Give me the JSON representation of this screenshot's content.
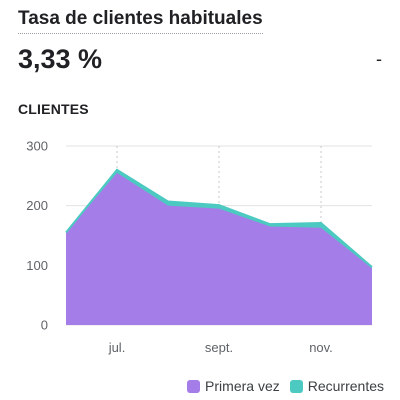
{
  "card": {
    "title": "Tasa de clientes habituales",
    "value": "3,33 %",
    "delta": "-"
  },
  "chart_data": {
    "type": "area",
    "title": "CLIENTES",
    "stacked": true,
    "x_tick_labels": [
      "jul.",
      "sept.",
      "nov."
    ],
    "y_ticks": [
      0,
      100,
      200,
      300
    ],
    "ylim": [
      0,
      300
    ],
    "grid": true,
    "legend_position": "bottom-right",
    "series": [
      {
        "name": "Primera vez",
        "color": "#a57de8",
        "values": [
          155,
          255,
          200,
          195,
          165,
          163,
          95
        ]
      },
      {
        "name": "Recurrentes",
        "color": "#4cc9c0",
        "values": [
          0,
          5,
          7,
          6,
          4,
          8,
          2
        ]
      }
    ]
  }
}
